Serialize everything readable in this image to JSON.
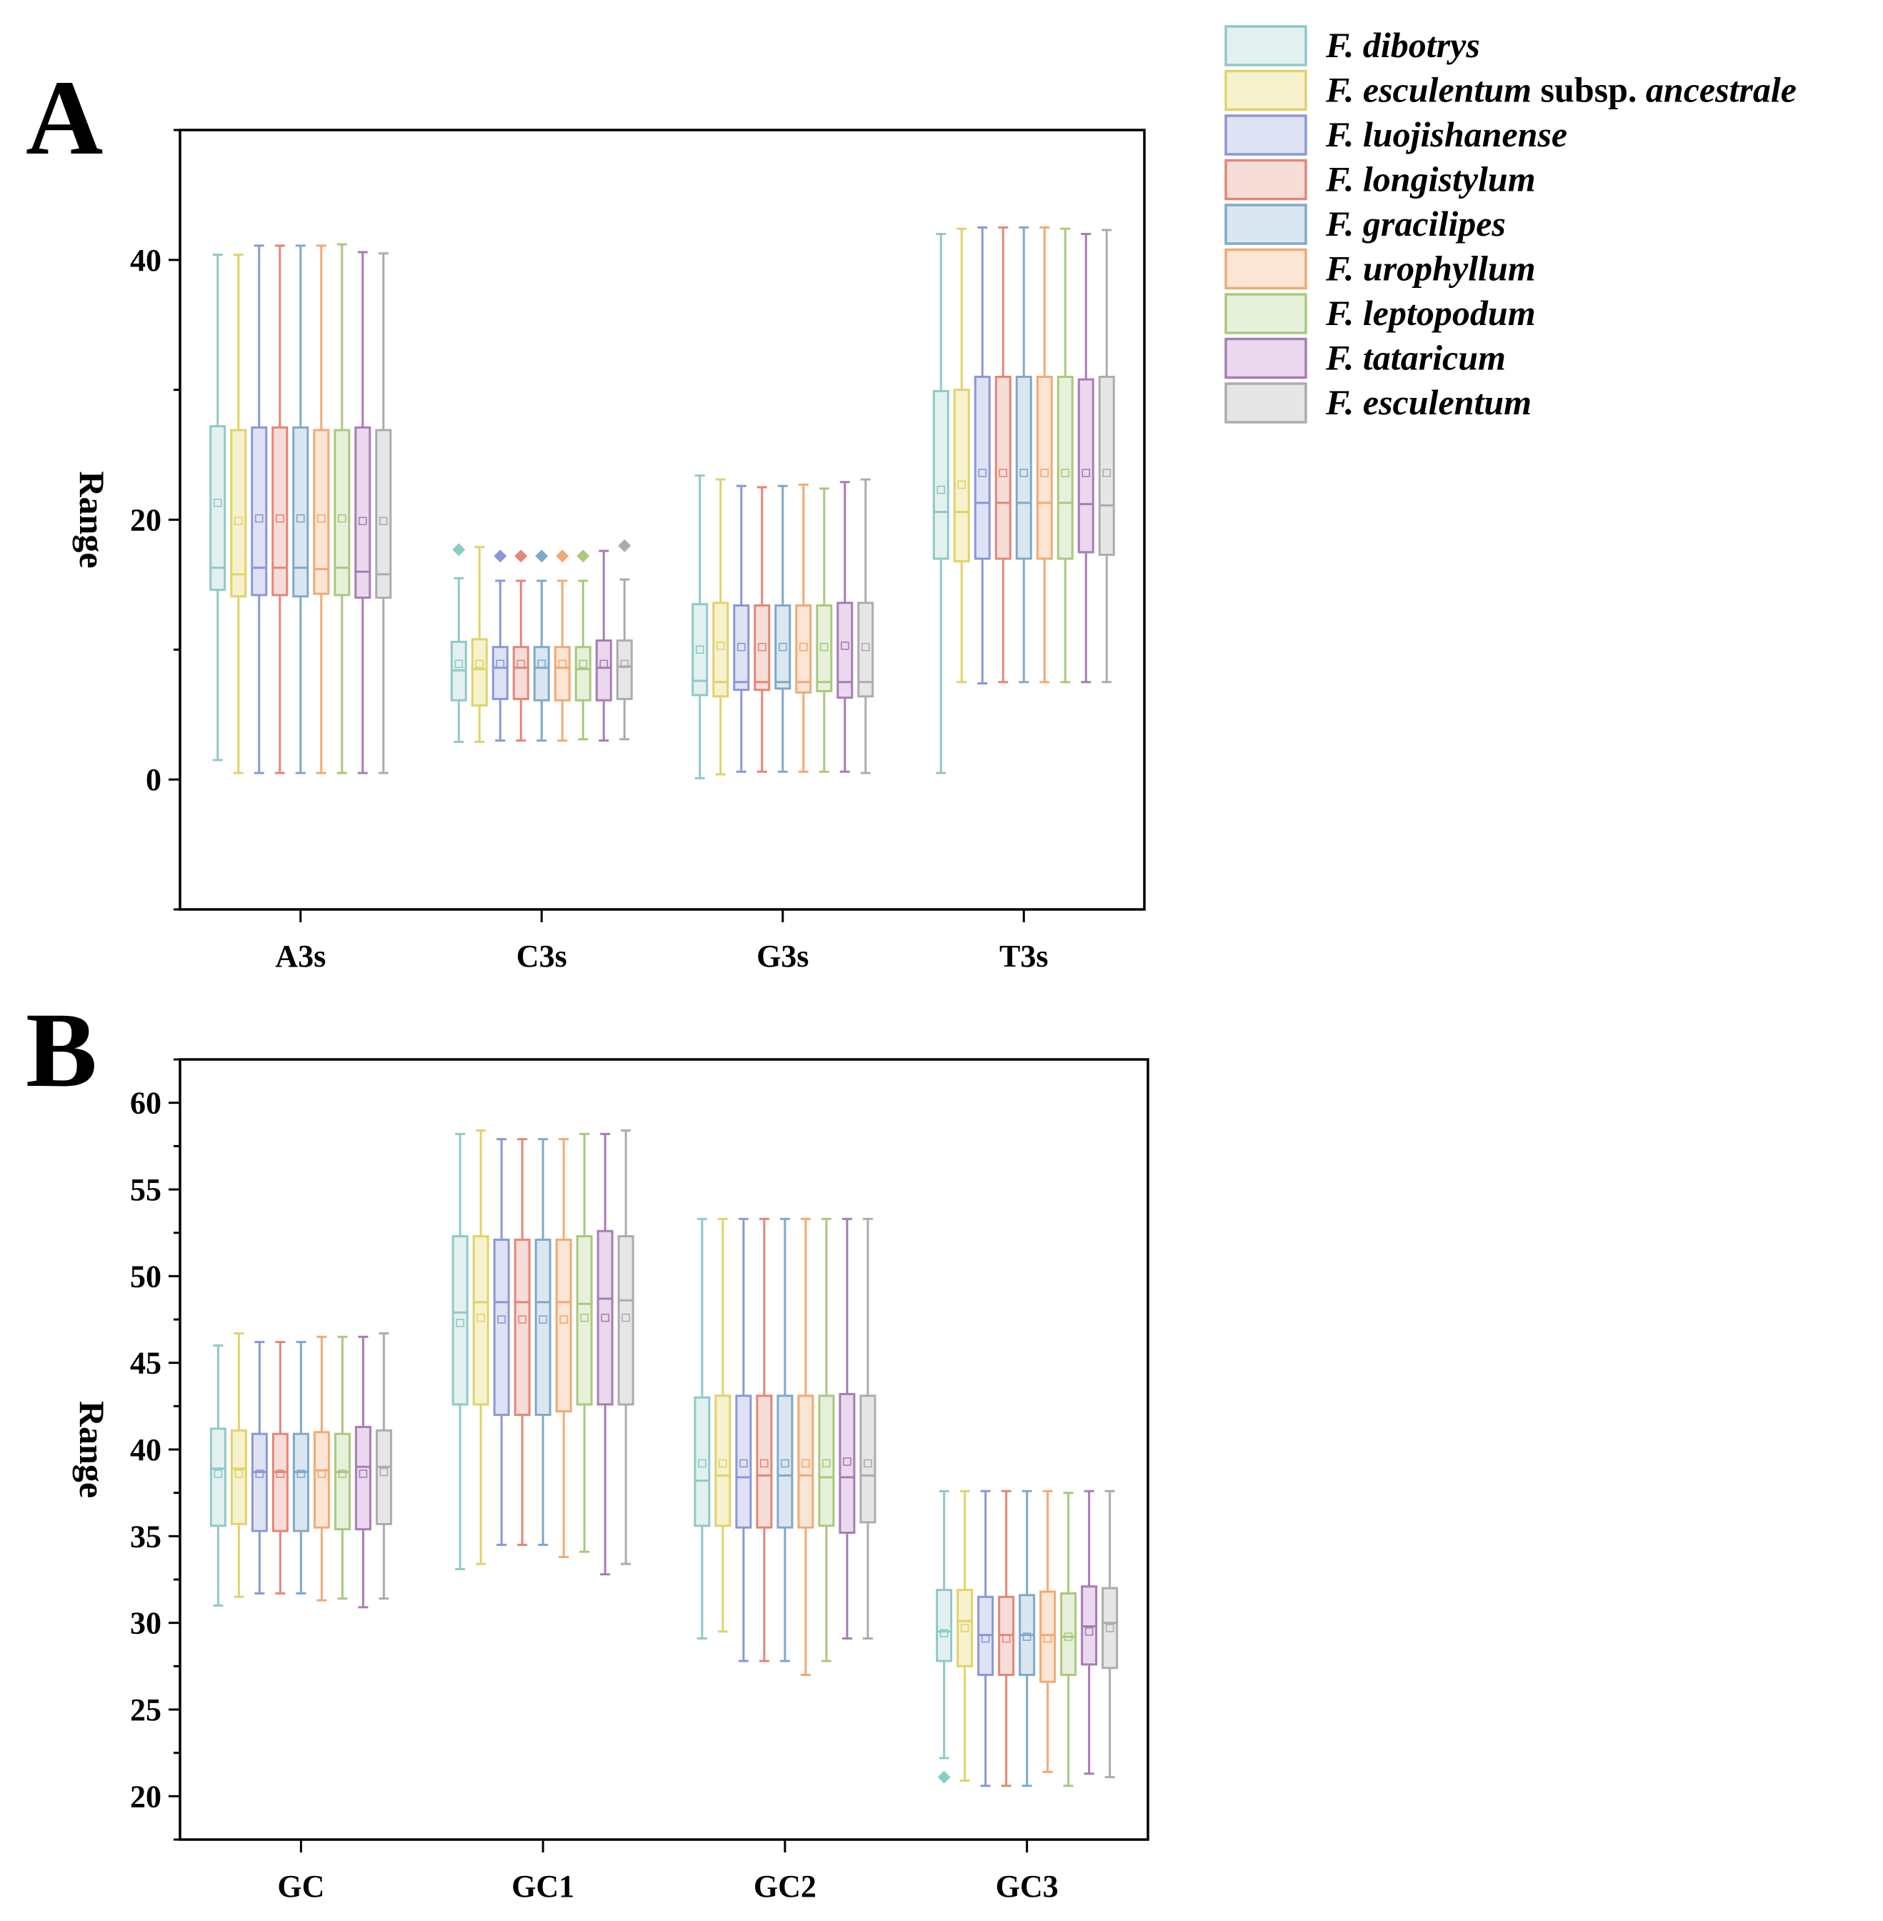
{
  "chart_data": [
    {
      "type": "box",
      "panel_label": "A",
      "ylabel": "Range",
      "xlabel": "",
      "categories": [
        "A3s",
        "C3s",
        "G3s",
        "T3s"
      ],
      "yticks": [
        0,
        20,
        40
      ],
      "ylim": [
        -10,
        50
      ],
      "grid": false,
      "stats_order": [
        "min",
        "q1",
        "median",
        "q3",
        "max",
        "mean"
      ],
      "boxes": [
        [
          [
            1.5,
            14.6,
            16.3,
            27.2,
            40.4,
            21.3
          ],
          [
            0.5,
            14.1,
            15.8,
            26.9,
            40.4,
            19.9
          ],
          [
            0.5,
            14.2,
            16.3,
            27.1,
            41.1,
            20.1
          ],
          [
            0.5,
            14.2,
            16.3,
            27.1,
            41.1,
            20.1
          ],
          [
            0.5,
            14.1,
            16.3,
            27.1,
            41.1,
            20.1
          ],
          [
            0.5,
            14.3,
            16.2,
            26.9,
            41.1,
            20.1
          ],
          [
            0.5,
            14.2,
            16.3,
            26.9,
            41.2,
            20.1
          ],
          [
            0.5,
            14.0,
            16.0,
            27.1,
            40.6,
            19.9
          ],
          [
            0.5,
            14.0,
            15.8,
            26.9,
            40.5,
            19.9
          ]
        ],
        [
          [
            2.9,
            6.1,
            8.4,
            10.6,
            15.5,
            8.9,
            17.7
          ],
          [
            2.9,
            5.7,
            8.5,
            10.8,
            17.9,
            8.9
          ],
          [
            3.0,
            6.2,
            8.6,
            10.2,
            15.3,
            8.9,
            17.2
          ],
          [
            3.0,
            6.2,
            8.6,
            10.2,
            15.3,
            8.9,
            17.2
          ],
          [
            3.0,
            6.1,
            8.6,
            10.2,
            15.3,
            8.9,
            17.2
          ],
          [
            3.0,
            6.1,
            8.6,
            10.2,
            15.3,
            8.9,
            17.2
          ],
          [
            3.1,
            6.1,
            8.5,
            10.2,
            15.3,
            8.9,
            17.2
          ],
          [
            3.0,
            6.1,
            8.6,
            10.7,
            17.6,
            8.9
          ],
          [
            3.1,
            6.2,
            8.7,
            10.7,
            15.4,
            8.9,
            18.0
          ]
        ],
        [
          [
            0.1,
            6.5,
            7.6,
            13.5,
            23.4,
            10.0
          ],
          [
            0.4,
            6.4,
            7.5,
            13.6,
            23.1,
            10.3
          ],
          [
            0.6,
            6.9,
            7.5,
            13.4,
            22.6,
            10.2
          ],
          [
            0.6,
            6.9,
            7.5,
            13.4,
            22.5,
            10.2
          ],
          [
            0.6,
            7.0,
            7.5,
            13.4,
            22.6,
            10.2
          ],
          [
            0.6,
            6.7,
            7.5,
            13.4,
            22.7,
            10.2
          ],
          [
            0.6,
            6.8,
            7.5,
            13.4,
            22.4,
            10.2
          ],
          [
            0.6,
            6.3,
            7.5,
            13.6,
            22.9,
            10.3
          ],
          [
            0.5,
            6.4,
            7.5,
            13.6,
            23.1,
            10.2
          ]
        ],
        [
          [
            0.5,
            17.0,
            20.6,
            29.9,
            42.0,
            22.3
          ],
          [
            7.5,
            16.8,
            20.6,
            30.0,
            42.4,
            22.7
          ],
          [
            7.4,
            17.0,
            21.3,
            31.0,
            42.5,
            23.6
          ],
          [
            7.5,
            17.0,
            21.3,
            31.0,
            42.5,
            23.6
          ],
          [
            7.5,
            17.0,
            21.3,
            31.0,
            42.5,
            23.6
          ],
          [
            7.5,
            17.0,
            21.3,
            31.0,
            42.5,
            23.6
          ],
          [
            7.5,
            17.0,
            21.3,
            31.0,
            42.4,
            23.6
          ],
          [
            7.5,
            17.5,
            21.2,
            30.8,
            42.0,
            23.6
          ],
          [
            7.5,
            17.3,
            21.1,
            31.0,
            42.3,
            23.6
          ]
        ]
      ]
    },
    {
      "type": "box",
      "panel_label": "B",
      "ylabel": "Range",
      "xlabel": "",
      "categories": [
        "GC",
        "GC1",
        "GC2",
        "GC3"
      ],
      "yticks": [
        20,
        25,
        30,
        35,
        40,
        45,
        50,
        55,
        60
      ],
      "ylim": [
        17.5,
        62.5
      ],
      "grid": false,
      "stats_order": [
        "min",
        "q1",
        "median",
        "q3",
        "max",
        "mean"
      ],
      "boxes": [
        [
          [
            31.0,
            35.6,
            38.9,
            41.2,
            46.0,
            38.6
          ],
          [
            31.5,
            35.7,
            38.9,
            41.1,
            46.7,
            38.6
          ],
          [
            31.7,
            35.3,
            38.7,
            40.9,
            46.2,
            38.6
          ],
          [
            31.7,
            35.3,
            38.7,
            40.9,
            46.2,
            38.6
          ],
          [
            31.7,
            35.3,
            38.7,
            40.9,
            46.2,
            38.6
          ],
          [
            31.3,
            35.5,
            38.8,
            41.0,
            46.5,
            38.6
          ],
          [
            31.4,
            35.4,
            38.7,
            40.9,
            46.5,
            38.6
          ],
          [
            30.9,
            35.4,
            39.0,
            41.3,
            46.5,
            38.6
          ],
          [
            31.4,
            35.7,
            39.0,
            41.1,
            46.7,
            38.7
          ]
        ],
        [
          [
            33.1,
            42.6,
            47.9,
            52.3,
            58.2,
            47.3
          ],
          [
            33.4,
            42.6,
            48.5,
            52.3,
            58.4,
            47.6
          ],
          [
            34.5,
            42.0,
            48.5,
            52.1,
            57.9,
            47.5
          ],
          [
            34.5,
            42.0,
            48.5,
            52.1,
            57.9,
            47.5
          ],
          [
            34.5,
            42.0,
            48.5,
            52.1,
            57.9,
            47.5
          ],
          [
            33.8,
            42.2,
            48.5,
            52.1,
            57.9,
            47.5
          ],
          [
            34.1,
            42.6,
            48.4,
            52.3,
            58.2,
            47.6
          ],
          [
            32.8,
            42.6,
            48.7,
            52.6,
            58.2,
            47.6
          ],
          [
            33.4,
            42.6,
            48.6,
            52.3,
            58.4,
            47.6
          ]
        ],
        [
          [
            29.1,
            35.6,
            38.2,
            43.0,
            53.3,
            39.2
          ],
          [
            29.5,
            35.6,
            38.5,
            43.1,
            53.3,
            39.2
          ],
          [
            27.8,
            35.5,
            38.4,
            43.1,
            53.3,
            39.2
          ],
          [
            27.8,
            35.5,
            38.5,
            43.1,
            53.3,
            39.2
          ],
          [
            27.8,
            35.5,
            38.5,
            43.1,
            53.3,
            39.2
          ],
          [
            27.0,
            35.5,
            38.5,
            43.1,
            53.3,
            39.2
          ],
          [
            27.8,
            35.6,
            38.4,
            43.1,
            53.3,
            39.2
          ],
          [
            29.1,
            35.2,
            38.4,
            43.2,
            53.3,
            39.3
          ],
          [
            29.1,
            35.8,
            38.5,
            43.1,
            53.3,
            39.2
          ]
        ],
        [
          [
            22.2,
            27.8,
            29.5,
            31.9,
            37.6,
            29.4,
            21.1
          ],
          [
            20.9,
            27.5,
            30.1,
            31.9,
            37.6,
            29.7
          ],
          [
            20.6,
            27.0,
            29.3,
            31.5,
            37.6,
            29.1
          ],
          [
            20.6,
            27.0,
            29.3,
            31.5,
            37.6,
            29.1
          ],
          [
            20.6,
            27.0,
            29.3,
            31.6,
            37.6,
            29.2
          ],
          [
            21.4,
            26.6,
            29.3,
            31.8,
            37.6,
            29.1
          ],
          [
            20.6,
            27.0,
            29.2,
            31.7,
            37.5,
            29.2
          ],
          [
            21.3,
            27.6,
            29.8,
            32.1,
            37.6,
            29.5
          ],
          [
            21.1,
            27.4,
            30.0,
            32.0,
            37.6,
            29.7
          ]
        ]
      ]
    }
  ],
  "series": [
    {
      "name": "F. dibotrys",
      "stroke": "#8fc9c7",
      "fill": "#e2f1f0"
    },
    {
      "name": "F. esculentum subsp. ancestrale",
      "stroke": "#e0d36a",
      "fill": "#f6f2cd"
    },
    {
      "name": "F. luojishanense",
      "stroke": "#8a98d6",
      "fill": "#dfe2f4"
    },
    {
      "name": "F. longistylum",
      "stroke": "#e38678",
      "fill": "#f7ddd8"
    },
    {
      "name": "F. gracilipes",
      "stroke": "#80a9c9",
      "fill": "#dae7f0"
    },
    {
      "name": "F. urophyllum",
      "stroke": "#f0aa74",
      "fill": "#fbe5d5"
    },
    {
      "name": "F. leptopodum",
      "stroke": "#aac87e",
      "fill": "#e7f0da"
    },
    {
      "name": "F. tataricum",
      "stroke": "#a87cb4",
      "fill": "#ead9ee"
    },
    {
      "name": "F. esculentum",
      "stroke": "#acacac",
      "fill": "#e6e6e6"
    }
  ],
  "legend": {
    "position": "top-right",
    "entries": [
      {
        "parts": [
          {
            "text": "F. dibotrys",
            "italic": true
          }
        ]
      },
      {
        "parts": [
          {
            "text": "F. esculentum",
            "italic": true
          },
          {
            "text": " subsp. ",
            "italic": false
          },
          {
            "text": "ancestrale",
            "italic": true
          }
        ]
      },
      {
        "parts": [
          {
            "text": "F. luojishanense",
            "italic": true
          }
        ]
      },
      {
        "parts": [
          {
            "text": "F. longistylum",
            "italic": true
          }
        ]
      },
      {
        "parts": [
          {
            "text": "F. gracilipes",
            "italic": true
          }
        ]
      },
      {
        "parts": [
          {
            "text": "F. urophyllum",
            "italic": true
          }
        ]
      },
      {
        "parts": [
          {
            "text": "F. leptopodum",
            "italic": true
          }
        ]
      },
      {
        "parts": [
          {
            "text": "F. tataricum",
            "italic": true
          }
        ]
      },
      {
        "parts": [
          {
            "text": "F. esculentum",
            "italic": true
          }
        ]
      }
    ]
  }
}
